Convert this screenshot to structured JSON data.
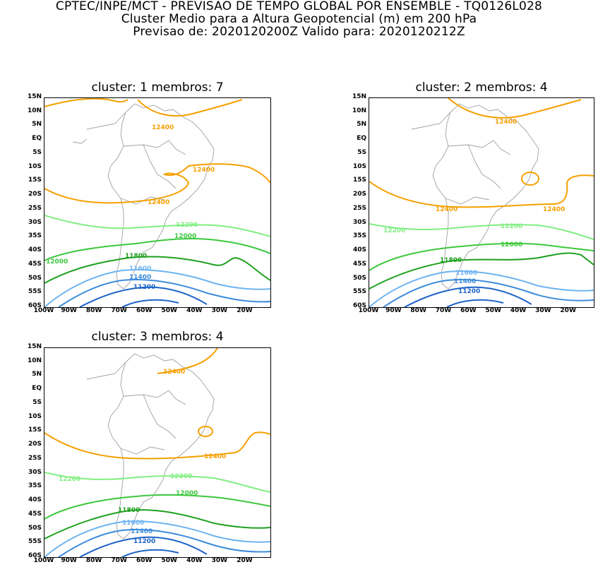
{
  "header": {
    "line1": "CPTEC/INPE/MCT - PREVISAO DE TEMPO GLOBAL POR ENSEMBLE - TQ0126L028",
    "line2": "Cluster Medio para a Altura Geopotencial (m) em 200 hPa",
    "line3": "Previsao de: 2020120200Z    Valido para: 2020120212Z"
  },
  "axes": {
    "lat_labels": [
      "15N",
      "10N",
      "5N",
      "EQ",
      "5S",
      "10S",
      "15S",
      "20S",
      "25S",
      "30S",
      "35S",
      "40S",
      "45S",
      "50S",
      "55S",
      "60S"
    ],
    "lon_labels": [
      "100W",
      "90W",
      "80W",
      "70W",
      "60W",
      "50W",
      "40W",
      "30W",
      "20W"
    ]
  },
  "colors": {
    "c12400": "#f5a000",
    "c12200": "#80ee80",
    "c12000": "#3cc83c",
    "c11800": "#1ea01e",
    "c11600": "#6eb4f0",
    "c11400": "#3c8cdc",
    "c11200": "#1e64c8",
    "coast": "#a0a0a0"
  },
  "panels": [
    {
      "title": "cluster: 1   membros: 7",
      "labels": {
        "l12400a": "12400",
        "l12400b": "12400",
        "l12400c": "12400",
        "l12200": "12200",
        "l12000a": "12000",
        "l12000b": "12000",
        "l11800": "11800",
        "l11600": "11600",
        "l11400": "11400",
        "l11200": "11200"
      }
    },
    {
      "title": "cluster: 2   membros: 4",
      "labels": {
        "l12400a": "12400",
        "l12400b": "12400",
        "l12400c": "12400",
        "l12200a": "12200",
        "l12200b": "12200",
        "l12000": "12000",
        "l11800": "11800",
        "l11600": "11600",
        "l11400": "11400",
        "l11200": "11200"
      }
    },
    {
      "title": "cluster: 3   membros: 4",
      "labels": {
        "l12400a": "12400",
        "l12400b": "12400",
        "l12200a": "12200",
        "l12200b": "12200",
        "l12000": "12000",
        "l11800": "11800",
        "l11600": "11600",
        "l11400": "11400",
        "l11200": "11200"
      }
    }
  ]
}
